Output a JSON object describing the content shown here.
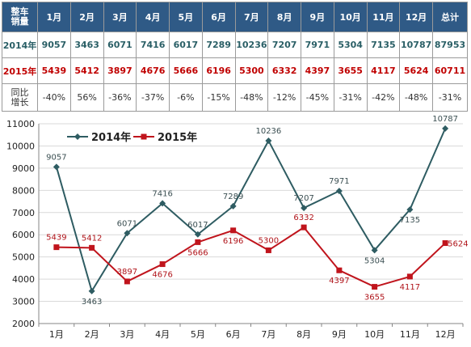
{
  "table": {
    "corner_lines": [
      "整车",
      "销量"
    ],
    "months": [
      "1月",
      "2月",
      "3月",
      "4月",
      "5月",
      "6月",
      "7月",
      "8月",
      "9月",
      "10月",
      "11月",
      "12月"
    ],
    "total_label": "总计",
    "row2014": {
      "label": "2014年",
      "values": [
        "9057",
        "3463",
        "6071",
        "7416",
        "6017",
        "7289",
        "10236",
        "7207",
        "7971",
        "5304",
        "7135",
        "10787"
      ],
      "total": "87953"
    },
    "row2015": {
      "label": "2015年",
      "values": [
        "5439",
        "5412",
        "3897",
        "4676",
        "5666",
        "6196",
        "5300",
        "6332",
        "4397",
        "3655",
        "4117",
        "5624"
      ],
      "total": "60711"
    },
    "growth": {
      "label_lines": [
        "同比",
        "增长"
      ],
      "values": [
        "-40%",
        "56%",
        "-36%",
        "-37%",
        "-6%",
        "-15%",
        "-48%",
        "-12%",
        "-45%",
        "-31%",
        "-42%",
        "-48%"
      ],
      "total": "-31%"
    }
  },
  "chart_data": {
    "type": "line",
    "categories": [
      "1月",
      "2月",
      "3月",
      "4月",
      "5月",
      "6月",
      "7月",
      "8月",
      "9月",
      "10月",
      "11月",
      "12月"
    ],
    "series": [
      {
        "name": "2014年",
        "color": "#2e5c62",
        "marker": "diamond",
        "values": [
          9057,
          3463,
          6071,
          7416,
          6017,
          7289,
          10236,
          7207,
          7971,
          5304,
          7135,
          10787
        ]
      },
      {
        "name": "2015年",
        "color": "#c0141c",
        "marker": "square",
        "values": [
          5439,
          5412,
          3897,
          4676,
          5666,
          6196,
          5300,
          6332,
          4397,
          3655,
          4117,
          5624
        ]
      }
    ],
    "yticks": [
      2000,
      3000,
      4000,
      5000,
      6000,
      7000,
      8000,
      9000,
      10000,
      11000
    ],
    "ylim": [
      2000,
      11000
    ],
    "grid": true,
    "legend": "top-left",
    "title": "",
    "xlabel": "",
    "ylabel": ""
  }
}
